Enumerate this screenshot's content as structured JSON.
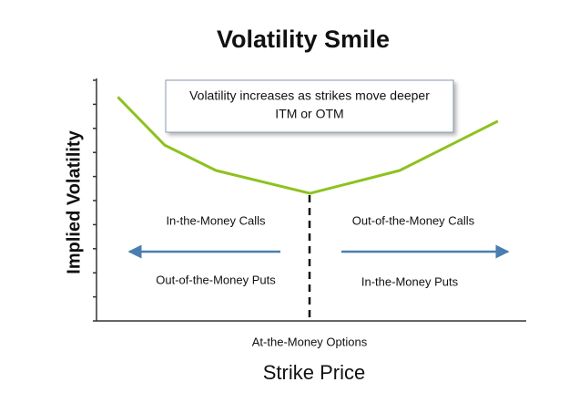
{
  "chart_data": {
    "type": "line",
    "title": "Volatility Smile",
    "x_label": "Strike Price",
    "y_label": "Implied Volatility",
    "x": [
      0.5,
      1.6,
      2.8,
      5,
      7.1,
      9.4
    ],
    "values": [
      9.3,
      7.3,
      6.25,
      5.3,
      6.25,
      8.3
    ],
    "color": "#8dc21f",
    "xlim": [
      0,
      10
    ],
    "ylim": [
      0,
      10
    ],
    "yticks": [
      0,
      1,
      2,
      3,
      4,
      5,
      6,
      7,
      8,
      9,
      10
    ],
    "callout": [
      "Volatility increases as strikes move deeper",
      "ITM or OTM"
    ],
    "annotations": {
      "left_top": "In-the-Money Calls",
      "left_bottom": "Out-of-the-Money Puts",
      "right_top": "Out-of-the-Money Calls",
      "right_bottom": "In-the-Money Puts",
      "center": "At-the-Money Options"
    }
  }
}
